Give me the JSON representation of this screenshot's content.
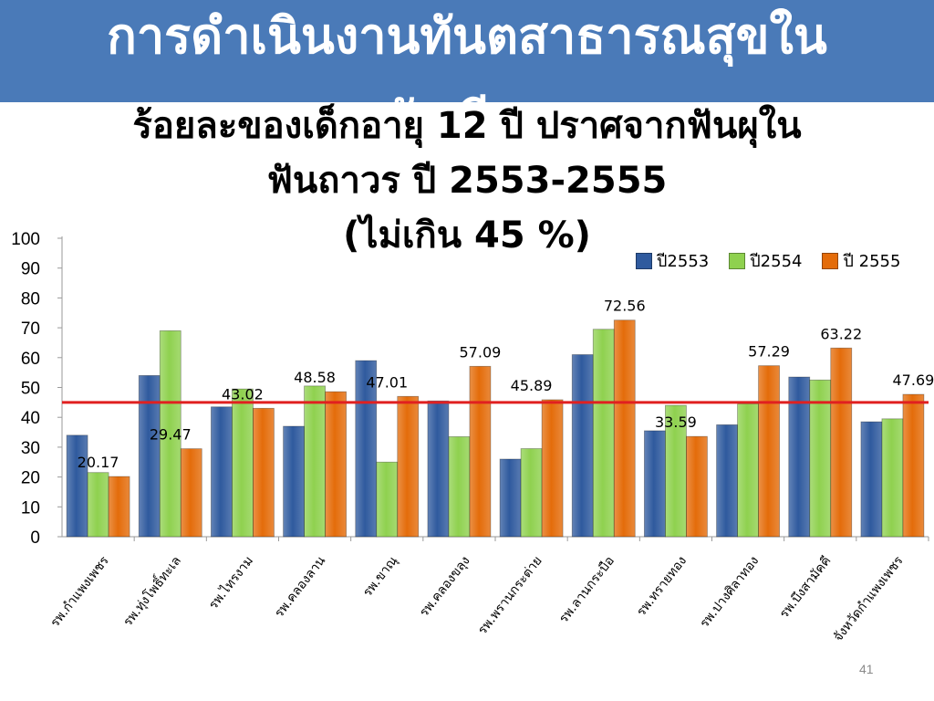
{
  "slide": {
    "banner_title": "การดำเนินงานทันตสาธารณสุขใน\nนักเรียน",
    "page_number": "41"
  },
  "colors": {
    "banner": "#4a7ab8",
    "series": [
      "#2f5a9e",
      "#8fd14f",
      "#e46c0a"
    ],
    "threshold_line": "#e02020"
  },
  "chart_data": {
    "type": "bar",
    "title": "ร้อยละของเด็กอายุ 12 ปี ปราศจากฟันผุใน\nฟันถาวร ปี 2553-2555\n(ไม่เกิน  45 %)",
    "categories": [
      "รพ.กำแพงเพชร",
      "รพ.ทุ่งโพธิ์ทะเล",
      "รพ.ไทรงาม",
      "รพ.คลองลาน",
      "รพ.ขาณุ",
      "รพ.คลองขลุง",
      "รพ.พรานกระต่าย",
      "รพ.ลานกระบือ",
      "รพ.ทรายทอง",
      "รพ.ปางศิลาทอง",
      "รพ.บึงสามัคคี",
      "จังหวัดกำแพงเพชร"
    ],
    "series": [
      {
        "name": "ปี2553",
        "values": [
          34,
          54,
          43.5,
          37,
          59,
          45.5,
          26,
          61,
          35.5,
          37.5,
          53.5,
          38.5
        ]
      },
      {
        "name": "ปี2554",
        "values": [
          21.5,
          69,
          49.5,
          50.5,
          25,
          33.5,
          29.5,
          69.5,
          44,
          44.5,
          52.5,
          39.5
        ]
      },
      {
        "name": "ปี 2555",
        "values": [
          20.17,
          29.47,
          43.02,
          48.58,
          47.01,
          57.09,
          45.89,
          72.56,
          33.59,
          57.29,
          63.22,
          47.69
        ]
      }
    ],
    "data_labels": [
      "20.17",
      "29.47",
      "43.02",
      "48.58",
      "47.01",
      "57.09",
      "45.89",
      "72.56",
      "33.59",
      "57.29",
      "63.22",
      "47.69"
    ],
    "y_ticks": [
      "0",
      "10",
      "20",
      "30",
      "40",
      "50",
      "60",
      "70",
      "80",
      "90",
      "100"
    ],
    "ylim": [
      0,
      100
    ],
    "target_line": 45,
    "legend_position": "top-right",
    "grid": false
  }
}
